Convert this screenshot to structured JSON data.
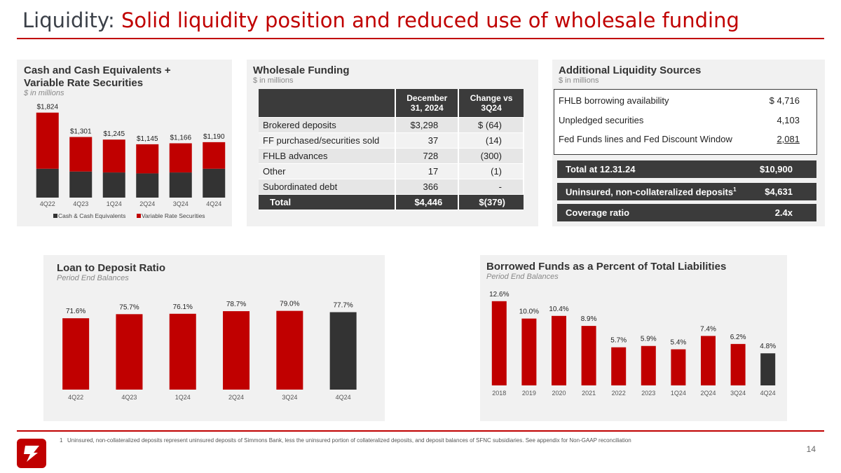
{
  "title": {
    "lead": "Liquidity: ",
    "accent": "Solid liquidity position and reduced use of wholesale funding"
  },
  "colors": {
    "red": "#c00000",
    "dark": "#3b3b3b",
    "panel": "#f1f1f1"
  },
  "cash_panel": {
    "title_line1": "Cash and Cash Equivalents +",
    "title_line2": "Variable Rate Securities",
    "subtitle": "$ in millions"
  },
  "wholesale": {
    "title": "Wholesale Funding",
    "subtitle": "$ in millions",
    "headers": [
      "",
      "December 31, 2024",
      "Change vs 3Q24"
    ],
    "rows": [
      [
        "Brokered deposits",
        "$3,298",
        "$  (64)"
      ],
      [
        "FF purchased/securities sold",
        "37",
        "(14)"
      ],
      [
        "FHLB advances",
        "728",
        "(300)"
      ],
      [
        "Other",
        "17",
        "(1)"
      ],
      [
        "Subordinated debt",
        "366",
        "-"
      ]
    ],
    "total": [
      "Total",
      "$4,446",
      "$(379)"
    ]
  },
  "additional": {
    "title": "Additional Liquidity Sources",
    "subtitle": "$ in millions",
    "rows": [
      [
        "FHLB borrowing availability",
        "$  4,716"
      ],
      [
        "Unpledged securities",
        "4,103"
      ],
      [
        "Fed Funds lines and Fed Discount Window",
        "2,081"
      ]
    ],
    "total": [
      "Total at 12.31.24",
      "$10,900"
    ],
    "uninsured": [
      "Uninsured, non-collateralized deposits",
      "1",
      "$4,631"
    ],
    "coverage": [
      "Coverage ratio",
      "2.4x"
    ]
  },
  "ltd_panel": {
    "title": "Loan to Deposit Ratio",
    "subtitle": "Period End Balances"
  },
  "borrowed_panel": {
    "title": "Borrowed Funds as a Percent of Total Liabilities",
    "subtitle": "Period End Balances"
  },
  "chart_data": [
    {
      "type": "bar",
      "stacked": true,
      "categories": [
        "4Q22",
        "4Q23",
        "1Q24",
        "2Q24",
        "3Q24",
        "4Q24"
      ],
      "totals": [
        1824,
        1301,
        1245,
        1145,
        1166,
        1190
      ],
      "total_labels": [
        "$1,824",
        "$1,301",
        "$1,245",
        "$1,145",
        "$1,166",
        "$1,190"
      ],
      "series": [
        {
          "name": "Cash & Cash Equivalents",
          "values": [
            620,
            560,
            540,
            520,
            540,
            620
          ],
          "color": "#333333"
        },
        {
          "name": "Variable Rate Securities",
          "values": [
            1204,
            741,
            705,
            625,
            626,
            570
          ],
          "color": "#c00000"
        }
      ],
      "legend": "bottom",
      "ylim": [
        0,
        2000
      ]
    },
    {
      "type": "bar",
      "categories": [
        "4Q22",
        "4Q23",
        "1Q24",
        "2Q24",
        "3Q24",
        "4Q24"
      ],
      "values": [
        71.6,
        75.7,
        76.1,
        78.7,
        79.0,
        77.7
      ],
      "labels": [
        "71.6%",
        "75.7%",
        "76.1%",
        "78.7%",
        "79.0%",
        "77.7%"
      ],
      "colors": [
        "#c00000",
        "#c00000",
        "#c00000",
        "#c00000",
        "#c00000",
        "#333333"
      ],
      "ylim": [
        0,
        90
      ]
    },
    {
      "type": "bar",
      "categories": [
        "2018",
        "2019",
        "2020",
        "2021",
        "2022",
        "2023",
        "1Q24",
        "2Q24",
        "3Q24",
        "4Q24"
      ],
      "values": [
        12.6,
        10.0,
        10.4,
        8.9,
        5.7,
        5.9,
        5.4,
        7.4,
        6.2,
        4.8
      ],
      "labels": [
        "12.6%",
        "10.0%",
        "10.4%",
        "8.9%",
        "5.7%",
        "5.9%",
        "5.4%",
        "7.4%",
        "6.2%",
        "4.8%"
      ],
      "colors": [
        "#c00000",
        "#c00000",
        "#c00000",
        "#c00000",
        "#c00000",
        "#c00000",
        "#c00000",
        "#c00000",
        "#c00000",
        "#333333"
      ],
      "ylim": [
        0,
        13
      ]
    }
  ],
  "footnote": {
    "num": "1",
    "text": "Uninsured, non-collateralized deposits represent uninsured deposits of Simmons Bank, less the uninsured portion of collateralized deposits, and deposit balances of SFNC subsidiaries. See appendix for Non-GAAP reconciliation"
  },
  "page_number": "14",
  "logo_icon": "simmons-logo-icon"
}
